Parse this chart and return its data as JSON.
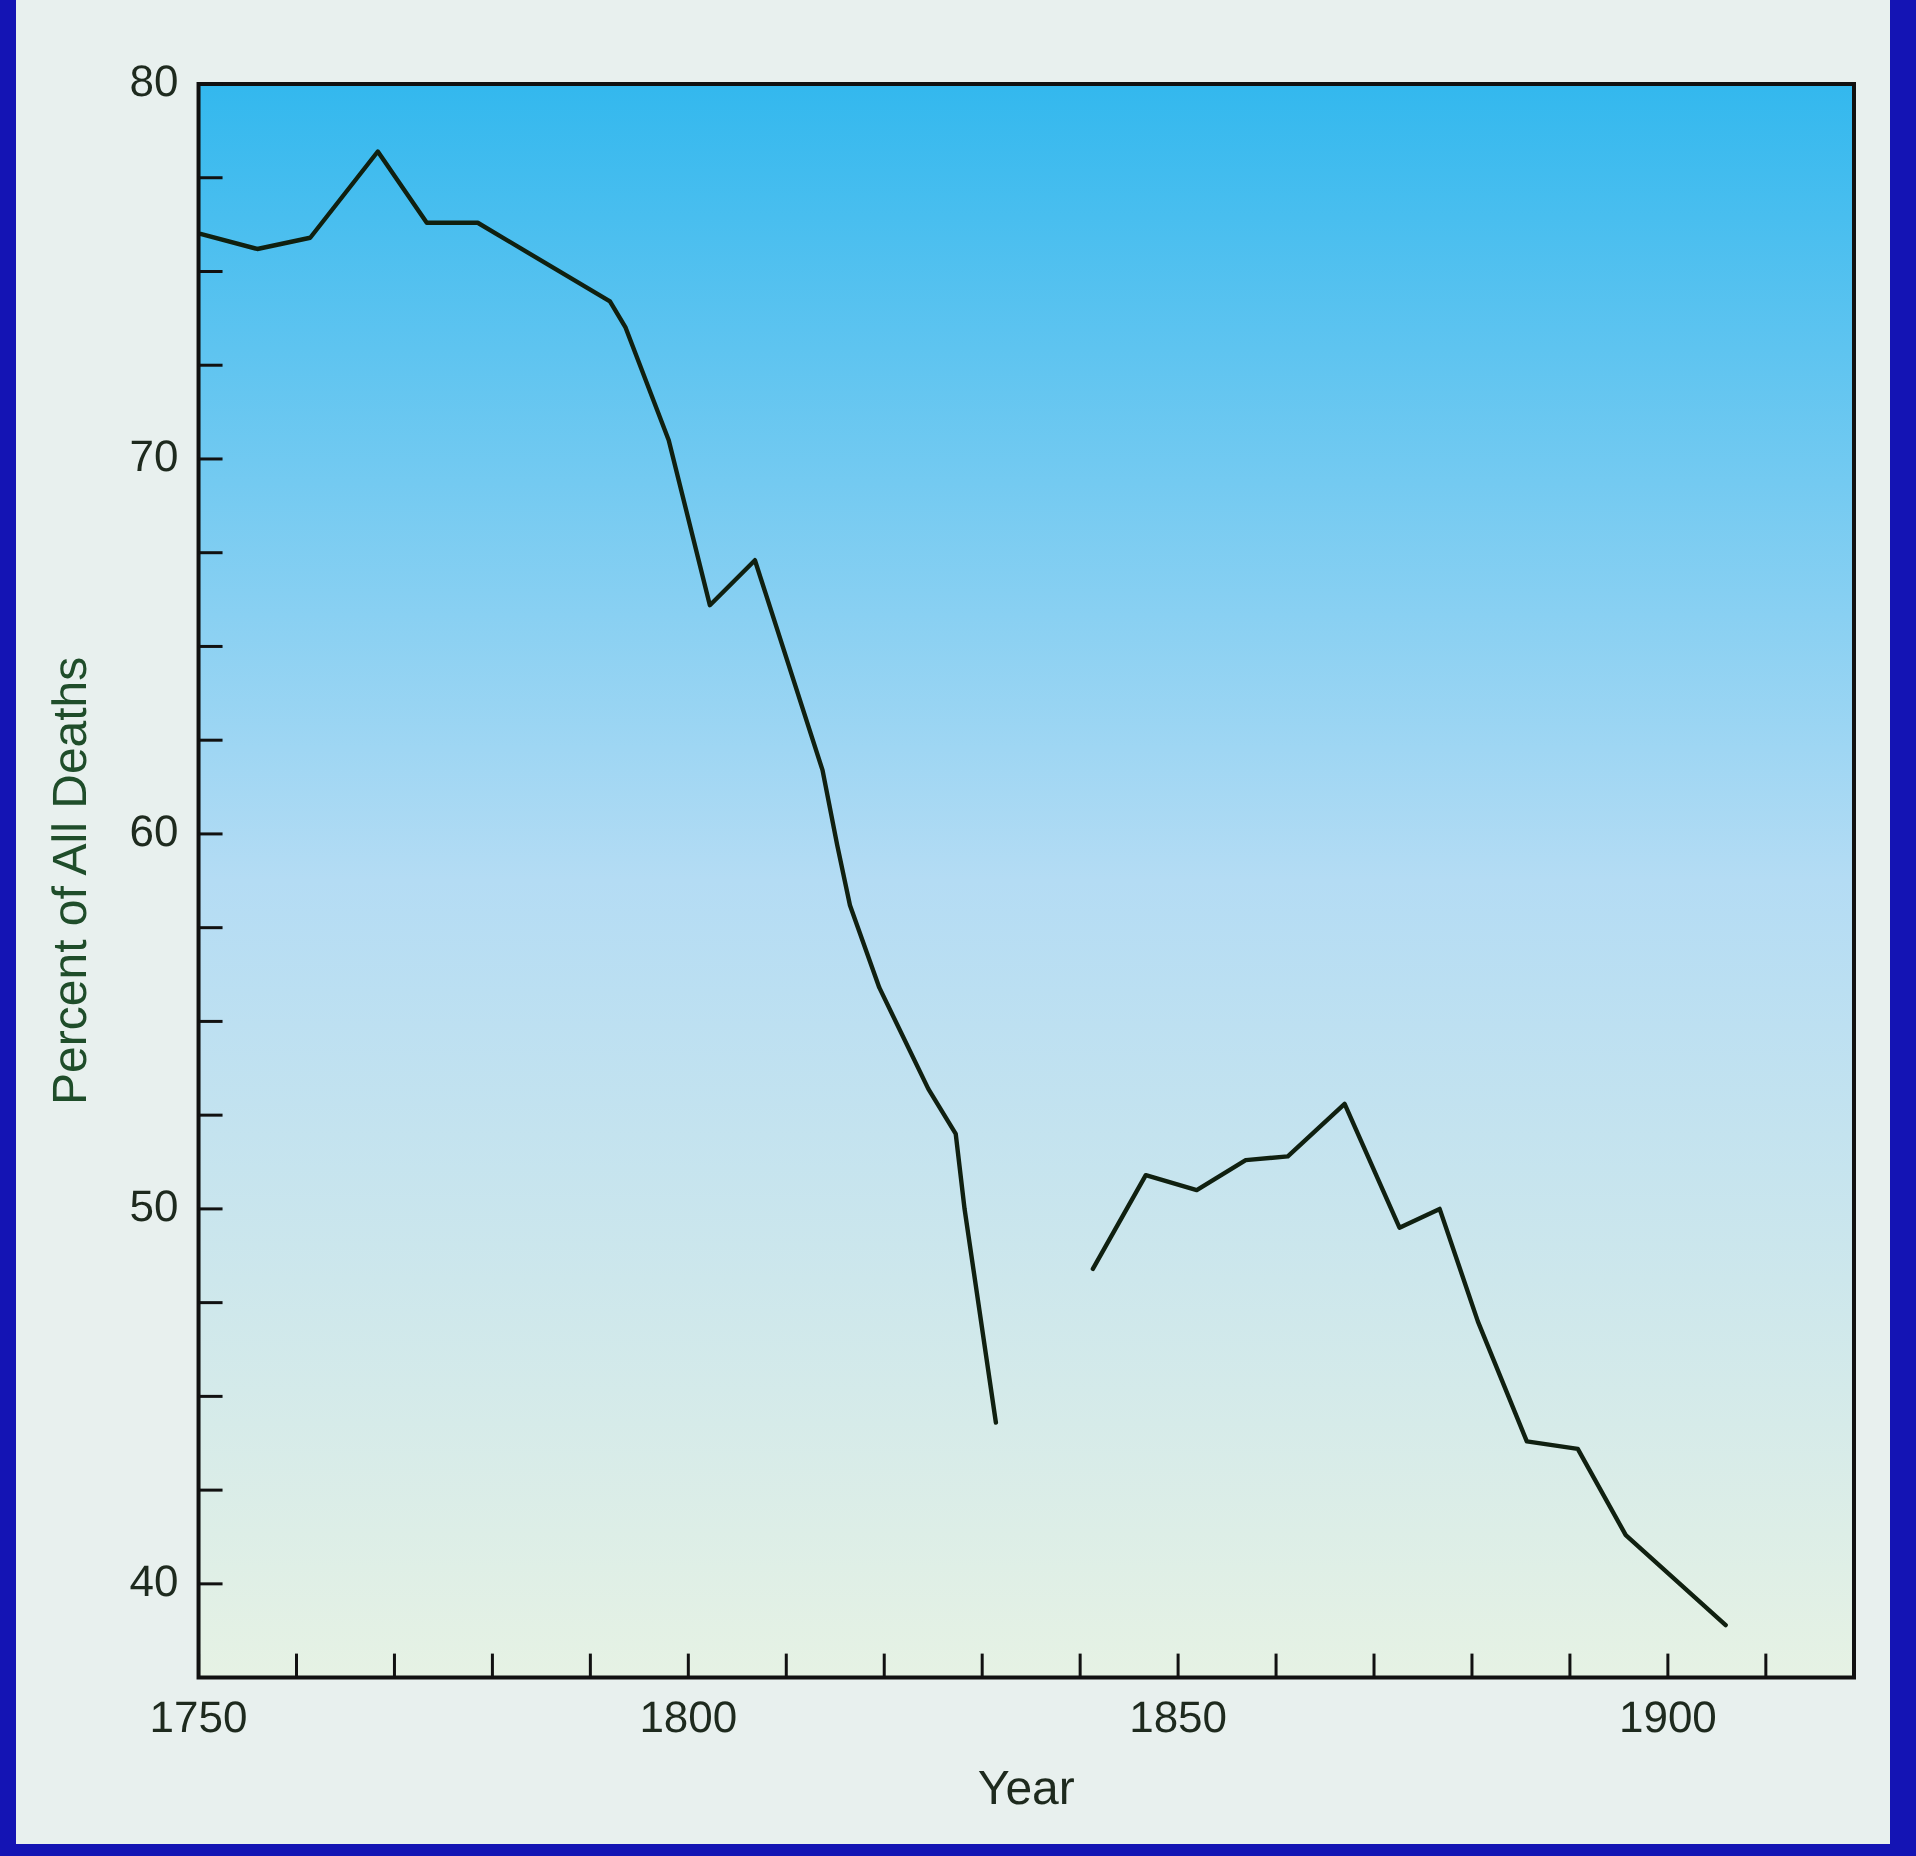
{
  "chart_data": {
    "type": "line",
    "xlabel": "Year",
    "ylabel": "Percent of All Deaths",
    "x": [
      1750.2,
      1756,
      1761.4,
      1768.3,
      1773.3,
      1778.5,
      1792,
      1793.6,
      1798,
      1802.2,
      1806.8,
      1813.7,
      1815.2,
      1816.5,
      1819.5,
      1824.5,
      1827.3,
      1828.2,
      1831.4,
      1835,
      1841.3,
      1846.7,
      1851.9,
      1856.9,
      1861.2,
      1867,
      1872.6,
      1876.7,
      1880.6,
      1885.6,
      1890.8,
      1895.7,
      1905.9
    ],
    "series": [
      {
        "color": "#102010",
        "values": [
          76.0,
          75.6,
          75.9,
          78.2,
          76.3,
          76.3,
          74.2,
          73.5,
          70.5,
          66.1,
          67.3,
          61.7,
          59.7,
          58.1,
          55.9,
          53.2,
          52.0,
          50.0,
          44.3,
          null,
          48.4,
          50.9,
          50.5,
          51.3,
          51.4,
          52.8,
          49.5,
          50.0,
          47.0,
          43.8,
          43.6,
          41.3,
          38.9
        ]
      }
    ],
    "xlim": [
      1750,
      1919
    ],
    "xticks": [
      1750,
      {
        "value": 1760,
        "label": null
      },
      {
        "value": 1770,
        "label": null
      },
      {
        "value": 1780,
        "label": null
      },
      {
        "value": 1790,
        "label": null
      },
      1800,
      {
        "value": 1810,
        "label": null
      },
      {
        "value": 1820,
        "label": null
      },
      {
        "value": 1830,
        "label": null
      },
      {
        "value": 1840,
        "label": null
      },
      1850,
      {
        "value": 1860,
        "label": null
      },
      {
        "value": 1870,
        "label": null
      },
      {
        "value": 1880,
        "label": null
      },
      {
        "value": 1890,
        "label": null
      },
      1900,
      {
        "value": 1910,
        "label": null
      }
    ],
    "ylim": [
      37.5,
      80
    ],
    "yticks": [
      40,
      {
        "value": 42.5,
        "label": null
      },
      {
        "value": 45,
        "label": null
      },
      {
        "value": 47.5,
        "label": null
      },
      50,
      {
        "value": 52.5,
        "label": null
      },
      {
        "value": 55,
        "label": null
      },
      {
        "value": 57.5,
        "label": null
      },
      60,
      {
        "value": 62.5,
        "label": null
      },
      {
        "value": 65,
        "label": null
      },
      {
        "value": 67.5,
        "label": null
      },
      70,
      {
        "value": 72.5,
        "label": null
      },
      {
        "value": 75,
        "label": null
      },
      {
        "value": 77.5,
        "label": null
      },
      80
    ],
    "grid": false,
    "legend": false,
    "marker": "none",
    "line_style": "solid"
  }
}
